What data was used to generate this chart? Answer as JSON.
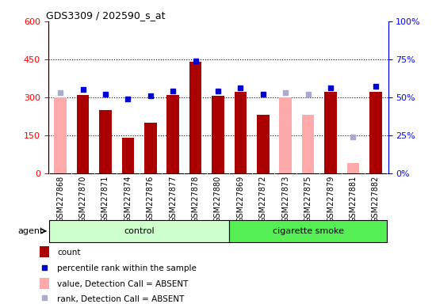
{
  "title": "GDS3309 / 202590_s_at",
  "samples": [
    "GSM227868",
    "GSM227870",
    "GSM227871",
    "GSM227874",
    "GSM227876",
    "GSM227877",
    "GSM227878",
    "GSM227880",
    "GSM227869",
    "GSM227872",
    "GSM227873",
    "GSM227875",
    "GSM227879",
    "GSM227881",
    "GSM227882"
  ],
  "groups": [
    "control",
    "control",
    "control",
    "control",
    "control",
    "control",
    "control",
    "control",
    "cigarette smoke",
    "cigarette smoke",
    "cigarette smoke",
    "cigarette smoke",
    "cigarette smoke",
    "cigarette smoke",
    "cigarette smoke"
  ],
  "count_present": [
    null,
    310,
    250,
    140,
    200,
    310,
    440,
    305,
    320,
    230,
    null,
    null,
    320,
    null,
    320
  ],
  "count_absent_val": [
    300,
    null,
    null,
    null,
    null,
    null,
    null,
    null,
    null,
    null,
    300,
    230,
    null,
    40,
    null
  ],
  "rank_present_pct": [
    null,
    55,
    52,
    49,
    51,
    54,
    74,
    54,
    56,
    52,
    null,
    null,
    56,
    null,
    57
  ],
  "rank_absent_pct": [
    53,
    null,
    null,
    null,
    null,
    null,
    null,
    null,
    null,
    null,
    53,
    52,
    null,
    24,
    null
  ],
  "ylim_left": [
    0,
    600
  ],
  "ylim_right": [
    0,
    100
  ],
  "yticks_left": [
    0,
    150,
    300,
    450,
    600
  ],
  "yticks_right": [
    0,
    25,
    50,
    75,
    100
  ],
  "ytick_right_labels": [
    "0%",
    "25%",
    "50%",
    "75%",
    "100%"
  ],
  "bar_color_present": "#aa0000",
  "bar_color_absent": "#ffaaaa",
  "dot_color_present": "#0000cc",
  "dot_color_absent": "#aaaacc",
  "control_color_light": "#ccffcc",
  "control_color_dark": "#55ee55",
  "agent_label": "agent",
  "control_label": "control",
  "smoke_label": "cigarette smoke",
  "legend_items": [
    "count",
    "percentile rank within the sample",
    "value, Detection Call = ABSENT",
    "rank, Detection Call = ABSENT"
  ],
  "grid_vals": [
    150,
    300,
    450
  ]
}
